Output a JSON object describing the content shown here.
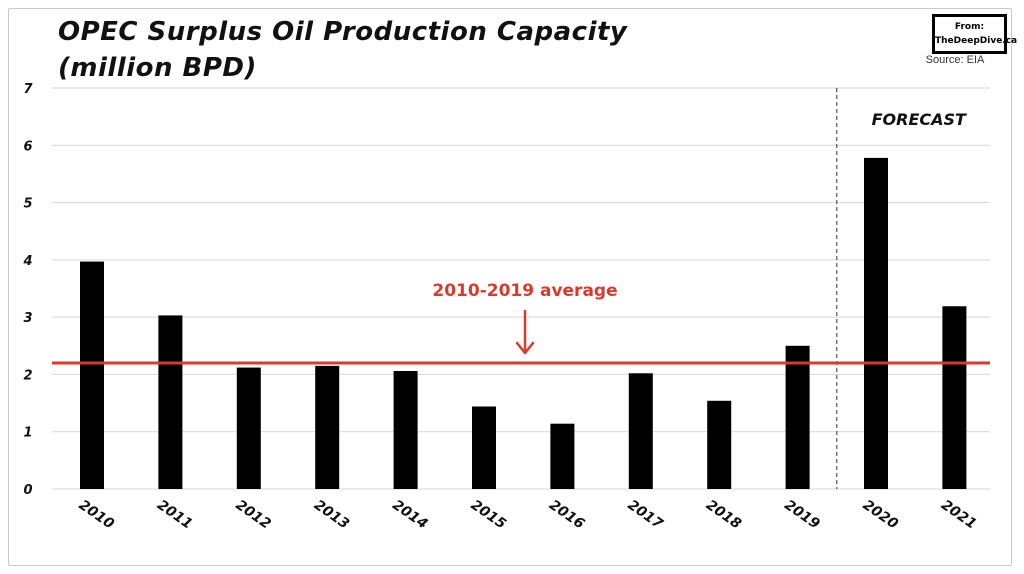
{
  "header": {
    "title_line1": "OPEC Surplus Oil Production Capacity",
    "title_line2": "(million BPD)",
    "badge_line1": "From:",
    "badge_line2": "TheDeepDive.ca",
    "source": "Source: EIA"
  },
  "colors": {
    "bar": "#000000",
    "average_line": "#d93a2b",
    "grid": "#d6d6d6"
  },
  "chart_data": {
    "type": "bar",
    "title": "OPEC Surplus Oil Production Capacity (million BPD)",
    "xlabel": "",
    "ylabel": "",
    "categories": [
      "2010",
      "2011",
      "2012",
      "2013",
      "2014",
      "2015",
      "2016",
      "2017",
      "2018",
      "2019",
      "2020",
      "2021"
    ],
    "values": [
      3.97,
      3.03,
      2.12,
      2.15,
      2.06,
      1.44,
      1.14,
      2.02,
      1.54,
      2.5,
      5.78,
      3.19
    ],
    "yticks": [
      "0",
      "1",
      "2",
      "3",
      "4",
      "5",
      "6",
      "7"
    ],
    "ylim": [
      0,
      7
    ],
    "grid": true,
    "average_line": {
      "label": "2010-2019 average",
      "value": 2.2
    },
    "forecast_marker": {
      "label": "FORECAST",
      "start_category": "2020"
    },
    "legend": "none"
  }
}
